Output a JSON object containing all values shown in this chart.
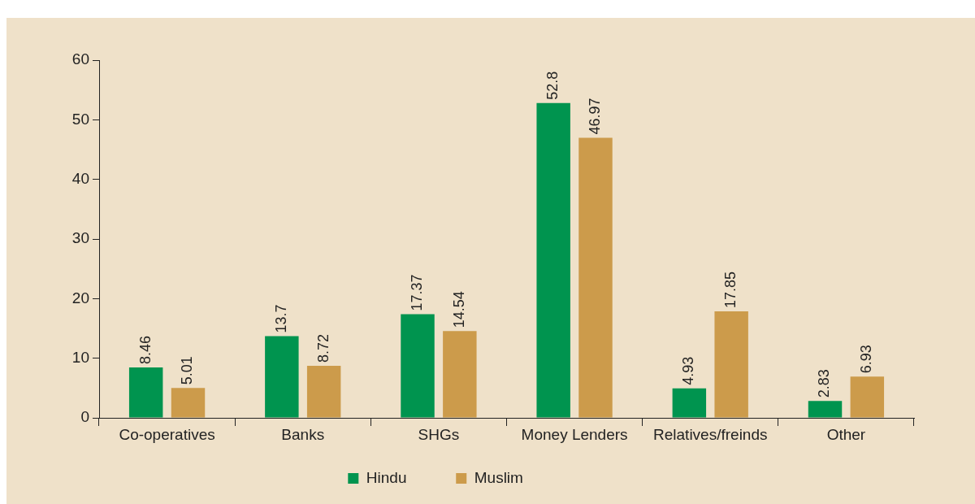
{
  "chart_data": {
    "type": "bar",
    "categories": [
      "Co-operatives",
      "Banks",
      "SHGs",
      "Money Lenders",
      "Relatives/freinds",
      "Other"
    ],
    "series": [
      {
        "name": "Hindu",
        "color": "#00944f",
        "values": [
          8.46,
          13.7,
          17.37,
          52.8,
          4.93,
          2.83
        ]
      },
      {
        "name": "Muslim",
        "color": "#cc9b4b",
        "values": [
          5.01,
          8.72,
          14.54,
          46.97,
          17.85,
          6.93
        ]
      }
    ],
    "ylim": [
      0,
      60
    ],
    "yticks": [
      0,
      10,
      20,
      30,
      40,
      50,
      60
    ],
    "grid": false,
    "legend": "bottom",
    "data_labels": true
  }
}
